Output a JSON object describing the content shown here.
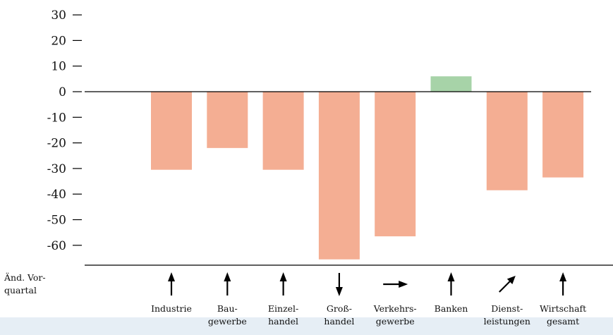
{
  "chart_data": {
    "type": "bar",
    "title": "",
    "xlabel": "",
    "ylabel": "",
    "ylim": [
      -65,
      30
    ],
    "yticks": [
      30,
      20,
      10,
      0,
      -10,
      -20,
      -30,
      -40,
      -50,
      -60
    ],
    "ytick_labels": [
      "30",
      "20",
      "10",
      "0",
      "-10",
      "-20",
      "-30",
      "-40",
      "-50",
      "-60"
    ],
    "grid": false,
    "legend": "none",
    "categories": [
      [
        "Industrie"
      ],
      [
        "Bau-",
        "gewerbe"
      ],
      [
        "Einzel-",
        "handel"
      ],
      [
        "Groß-",
        "handel"
      ],
      [
        "Verkehrs-",
        "gewerbe"
      ],
      [
        "Banken"
      ],
      [
        "Dienst-",
        "leistungen"
      ],
      [
        "Wirtschaft",
        "gesamt"
      ]
    ],
    "values": [
      -30.5,
      -22,
      -30.5,
      -65.5,
      -56.5,
      6,
      -38.5,
      -33.5
    ],
    "colors": {
      "negative": "#f4ae93",
      "positive": "#a7d3a8",
      "panel": "#ffffff",
      "background": "#e6eef5"
    },
    "change_row": {
      "label": [
        "Änd. Vor-",
        "quartal"
      ],
      "arrows": [
        "up",
        "up",
        "up",
        "down",
        "right",
        "up",
        "up-right",
        "up"
      ]
    }
  }
}
